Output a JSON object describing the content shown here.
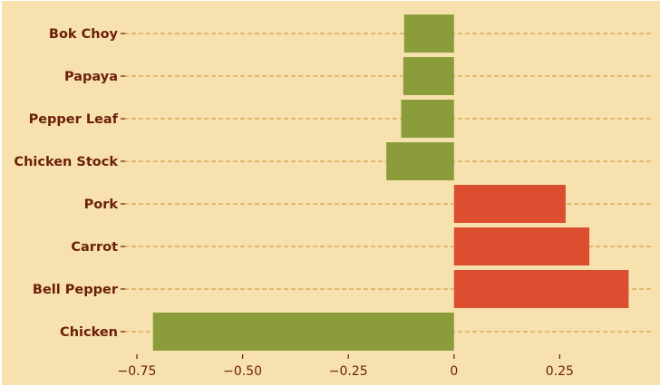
{
  "chart_data": {
    "type": "bar",
    "orientation": "horizontal",
    "categories": [
      "Bok Choy",
      "Papaya",
      "Pepper Leaf",
      "Chicken Stock",
      "Pork",
      "Carrot",
      "Bell Pepper",
      "Chicken"
    ],
    "values": [
      -0.118,
      -0.12,
      -0.125,
      -0.16,
      0.264,
      0.32,
      0.413,
      -0.712
    ],
    "xlim": [
      -0.78,
      0.47
    ],
    "xticks": [
      -0.75,
      -0.5,
      -0.25,
      0,
      0.25
    ],
    "xtick_labels": [
      "−0.75",
      "−0.50",
      "−0.25",
      "0",
      "0.25"
    ],
    "grid": "horizontal dashed",
    "colors": {
      "background": "#f7e1ae",
      "positive": "#db4e30",
      "negative": "#8b9d3a",
      "grid": "#d4a545",
      "text": "#6b1f08"
    }
  }
}
